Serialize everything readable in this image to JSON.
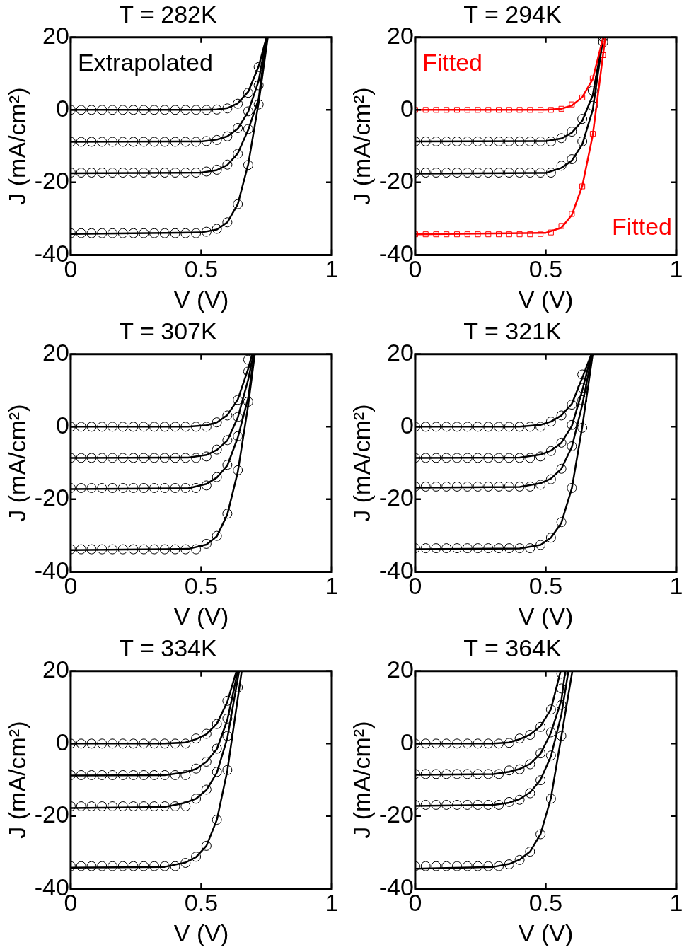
{
  "chart_data": [
    {
      "type": "line",
      "title": "T = 282K",
      "xlabel": "V (V)",
      "ylabel": "J (mA/cm²)",
      "xlim": [
        0,
        1
      ],
      "xticks": [
        0,
        0.5,
        1
      ],
      "ylim": [
        -40,
        20
      ],
      "yticks": [
        -40,
        -20,
        0,
        20
      ],
      "grid": false,
      "annotations": [
        "Extrapolated"
      ],
      "x": [
        0,
        0.04,
        0.08,
        0.12,
        0.16,
        0.2,
        0.24,
        0.28,
        0.32,
        0.36,
        0.4,
        0.44,
        0.48,
        0.52,
        0.56,
        0.6,
        0.64,
        0.68,
        0.72
      ],
      "series": [
        {
          "type": "line",
          "color": "#000000",
          "x": [
            0,
            0.5,
            0.56,
            0.6,
            0.64,
            0.68,
            0.72,
            0.75
          ],
          "values": [
            0,
            0,
            0.1,
            0.5,
            1.8,
            5,
            12,
            20
          ]
        },
        {
          "type": "line",
          "color": "#000000",
          "x": [
            0,
            0.5,
            0.56,
            0.6,
            0.64,
            0.68,
            0.72,
            0.75
          ],
          "values": [
            -8.8,
            -8.7,
            -8.2,
            -7.3,
            -5.2,
            -0.5,
            8,
            20
          ]
        },
        {
          "type": "line",
          "color": "#000000",
          "x": [
            0,
            0.5,
            0.56,
            0.6,
            0.64,
            0.68,
            0.72,
            0.75
          ],
          "values": [
            -17.5,
            -17.3,
            -16.6,
            -15.2,
            -12,
            -5.5,
            3,
            20
          ]
        },
        {
          "type": "line",
          "color": "#000000",
          "x": [
            0,
            0.5,
            0.56,
            0.6,
            0.64,
            0.68,
            0.72,
            0.755
          ],
          "values": [
            -34.2,
            -33.8,
            -33,
            -31,
            -26,
            -15,
            2,
            20
          ]
        },
        {
          "type": "scatter",
          "marker": "circle",
          "color": "#000000",
          "values": [
            0,
            0,
            0,
            0,
            0,
            0,
            0,
            0,
            0,
            0,
            0,
            0,
            0,
            0,
            0.1,
            0.4,
            1.7,
            4.7,
            11.8
          ]
        },
        {
          "type": "scatter",
          "marker": "circle",
          "color": "#000000",
          "values": [
            -8.8,
            -8.8,
            -8.8,
            -8.8,
            -8.8,
            -8.8,
            -8.8,
            -8.8,
            -8.8,
            -8.8,
            -8.8,
            -8.8,
            -8.8,
            -8.6,
            -8.3,
            -7.3,
            -5,
            -0.4,
            6.8
          ]
        },
        {
          "type": "scatter",
          "marker": "circle",
          "color": "#000000",
          "values": [
            -17.3,
            -17.3,
            -17.3,
            -17.3,
            -17.3,
            -17.3,
            -17.3,
            -17.3,
            -17.3,
            -17.3,
            -17.3,
            -17.3,
            -17.3,
            -17,
            -16.5,
            -15.1,
            -12.1,
            -5.3,
            1.5
          ]
        },
        {
          "type": "scatter",
          "marker": "circle",
          "color": "#000000",
          "values": [
            -34,
            -34,
            -34,
            -34,
            -34,
            -34,
            -34,
            -34,
            -34,
            -34,
            -34,
            -34,
            -34,
            -33.6,
            -32.8,
            -31,
            -26,
            -15.2,
            null
          ]
        }
      ]
    },
    {
      "type": "line",
      "title": "T = 294K",
      "xlabel": "V (V)",
      "ylabel": "J (mA/cm²)",
      "xlim": [
        0,
        1
      ],
      "xticks": [
        0,
        0.5,
        1
      ],
      "ylim": [
        -40,
        20
      ],
      "yticks": [
        -40,
        -20,
        0,
        20
      ],
      "grid": false,
      "annotations": [
        "Fitted",
        "Fitted"
      ],
      "x": [
        0,
        0.04,
        0.08,
        0.12,
        0.16,
        0.2,
        0.24,
        0.28,
        0.32,
        0.36,
        0.4,
        0.44,
        0.48,
        0.52,
        0.56,
        0.6,
        0.64,
        0.68,
        0.72
      ],
      "series": [
        {
          "type": "line",
          "color": "#ff0000",
          "x": [
            0,
            0.5,
            0.56,
            0.6,
            0.64,
            0.68,
            0.72
          ],
          "values": [
            0,
            0,
            0.3,
            1.2,
            3.5,
            8.5,
            20
          ]
        },
        {
          "type": "line",
          "color": "#000000",
          "x": [
            0,
            0.5,
            0.56,
            0.6,
            0.64,
            0.68,
            0.72
          ],
          "values": [
            -8.7,
            -8.6,
            -7.9,
            -6.3,
            -3,
            4,
            20
          ]
        },
        {
          "type": "line",
          "color": "#000000",
          "x": [
            0,
            0.5,
            0.56,
            0.6,
            0.64,
            0.68,
            0.72
          ],
          "values": [
            -17.6,
            -17.4,
            -16,
            -14,
            -9.5,
            0,
            20
          ]
        },
        {
          "type": "line",
          "color": "#ff0000",
          "x": [
            0,
            0.5,
            0.56,
            0.6,
            0.64,
            0.68,
            0.728
          ],
          "values": [
            -34.3,
            -33.9,
            -32.5,
            -29,
            -21,
            -7,
            20
          ]
        },
        {
          "type": "scatter",
          "marker": "square",
          "color": "#ff0000",
          "values": [
            0,
            0,
            0,
            0,
            0,
            0,
            0,
            0,
            0,
            0,
            0,
            0,
            0,
            0,
            0.3,
            1.5,
            3.4,
            8.7,
            15.1
          ]
        },
        {
          "type": "scatter",
          "marker": "circle",
          "color": "#000000",
          "values": [
            -8.7,
            -8.7,
            -8.7,
            -8.7,
            -8.7,
            -8.7,
            -8.7,
            -8.7,
            -8.7,
            -8.7,
            -8.7,
            -8.7,
            -8.7,
            -8.7,
            -7.8,
            -6,
            -2.5,
            5.3,
            18.7
          ]
        },
        {
          "type": "scatter",
          "marker": "circle",
          "color": "#000000",
          "values": [
            -17.3,
            -17.3,
            -17.3,
            -17.3,
            -17.3,
            -17.3,
            -17.3,
            -17.3,
            -17.3,
            -17.3,
            -17.3,
            -17.3,
            -17.3,
            -17.3,
            -15.4,
            -13.6,
            -8.7,
            1.1,
            20
          ]
        },
        {
          "type": "scatter",
          "marker": "square",
          "color": "#ff0000",
          "values": [
            -34.3,
            -34.3,
            -34.3,
            -34.3,
            -34.3,
            -34.3,
            -34.3,
            -34.3,
            -34.3,
            -34.3,
            -34.3,
            -34.3,
            -34.2,
            -33.8,
            -32,
            -28.7,
            -21.1,
            -6.6,
            15.1
          ]
        }
      ]
    },
    {
      "type": "line",
      "title": "T = 307K",
      "xlabel": "V (V)",
      "ylabel": "J (mA/cm²)",
      "xlim": [
        0,
        1
      ],
      "xticks": [
        0,
        0.5,
        1
      ],
      "ylim": [
        -40,
        20
      ],
      "yticks": [
        -40,
        -20,
        0,
        20
      ],
      "grid": false,
      "x": [
        0,
        0.04,
        0.08,
        0.12,
        0.16,
        0.2,
        0.24,
        0.28,
        0.32,
        0.36,
        0.4,
        0.44,
        0.48,
        0.52,
        0.56,
        0.6,
        0.64,
        0.68
      ],
      "series": [
        {
          "type": "line",
          "color": "#000000",
          "x": [
            0,
            0.45,
            0.52,
            0.56,
            0.6,
            0.64,
            0.68,
            0.695
          ],
          "values": [
            0,
            0,
            0.4,
            1.2,
            3.2,
            7.5,
            16,
            20
          ]
        },
        {
          "type": "line",
          "color": "#000000",
          "x": [
            0,
            0.45,
            0.52,
            0.56,
            0.6,
            0.64,
            0.68,
            0.7
          ],
          "values": [
            -8.6,
            -8.5,
            -7.8,
            -6.4,
            -3.8,
            2.5,
            13,
            20
          ]
        },
        {
          "type": "line",
          "color": "#000000",
          "x": [
            0,
            0.45,
            0.52,
            0.56,
            0.6,
            0.64,
            0.68,
            0.703
          ],
          "values": [
            -17.2,
            -17,
            -15.8,
            -14,
            -10.7,
            -3,
            8,
            20
          ]
        },
        {
          "type": "line",
          "color": "#000000",
          "x": [
            0,
            0.45,
            0.52,
            0.56,
            0.6,
            0.64,
            0.68,
            0.705
          ],
          "values": [
            -34,
            -33.7,
            -32.5,
            -30.2,
            -24.2,
            -12.5,
            6,
            20
          ]
        },
        {
          "type": "scatter",
          "marker": "circle",
          "color": "#000000",
          "values": [
            0,
            0,
            0,
            0,
            0,
            0,
            0,
            0,
            0,
            0,
            0,
            0,
            0,
            0,
            1.2,
            3.1,
            7.4,
            18.5
          ]
        },
        {
          "type": "scatter",
          "marker": "circle",
          "color": "#000000",
          "values": [
            -8.6,
            -8.6,
            -8.6,
            -8.6,
            -8.6,
            -8.6,
            -8.6,
            -8.6,
            -8.6,
            -8.6,
            -8.6,
            -8.6,
            -8.6,
            -8.2,
            -6.3,
            -3.7,
            2.7,
            15.2
          ]
        },
        {
          "type": "scatter",
          "marker": "circle",
          "color": "#000000",
          "values": [
            -16.9,
            -16.9,
            -16.9,
            -16.9,
            -16.9,
            -16.9,
            -16.9,
            -16.9,
            -16.9,
            -16.9,
            -16.9,
            -16.9,
            -16.9,
            -16.2,
            -13.9,
            -10.5,
            -2.6,
            6.9
          ]
        },
        {
          "type": "scatter",
          "marker": "circle",
          "color": "#000000",
          "values": [
            -33.8,
            -33.8,
            -33.8,
            -33.8,
            -33.8,
            -33.8,
            -33.8,
            -33.8,
            -33.8,
            -33.8,
            -33.8,
            -33.8,
            -33.8,
            -32.3,
            -30.1,
            -24,
            -12,
            null
          ]
        }
      ]
    },
    {
      "type": "line",
      "title": "T = 321K",
      "xlabel": "V (V)",
      "ylabel": "J (mA/cm²)",
      "xlim": [
        0,
        1
      ],
      "xticks": [
        0,
        0.5,
        1
      ],
      "ylim": [
        -40,
        20
      ],
      "yticks": [
        -40,
        -20,
        0,
        20
      ],
      "grid": false,
      "x": [
        0,
        0.04,
        0.08,
        0.12,
        0.16,
        0.2,
        0.24,
        0.28,
        0.32,
        0.36,
        0.4,
        0.44,
        0.48,
        0.52,
        0.56,
        0.6,
        0.64
      ],
      "series": [
        {
          "type": "line",
          "color": "#000000",
          "x": [
            0,
            0.4,
            0.48,
            0.52,
            0.56,
            0.6,
            0.64,
            0.675
          ],
          "values": [
            0,
            0,
            0.5,
            1.4,
            3.1,
            6.3,
            13.5,
            20
          ]
        },
        {
          "type": "line",
          "color": "#000000",
          "x": [
            0,
            0.4,
            0.48,
            0.52,
            0.56,
            0.6,
            0.64,
            0.675
          ],
          "values": [
            -8.6,
            -8.5,
            -7.7,
            -6.6,
            -4.4,
            0.2,
            10,
            20
          ]
        },
        {
          "type": "line",
          "color": "#000000",
          "x": [
            0,
            0.4,
            0.48,
            0.52,
            0.56,
            0.6,
            0.64,
            0.678
          ],
          "values": [
            -16.8,
            -16.6,
            -15.6,
            -14.3,
            -11.6,
            -5.6,
            6,
            20
          ]
        },
        {
          "type": "line",
          "color": "#000000",
          "x": [
            0,
            0.4,
            0.48,
            0.52,
            0.56,
            0.6,
            0.64,
            0.68
          ],
          "values": [
            -33.8,
            -33.6,
            -32.6,
            -30.6,
            -26.5,
            -17,
            0,
            20
          ]
        },
        {
          "type": "scatter",
          "marker": "circle",
          "color": "#000000",
          "values": [
            0,
            0,
            0,
            0,
            0,
            0,
            0,
            0,
            0,
            0,
            0,
            0,
            0,
            1.4,
            3.1,
            6.1,
            14.4
          ]
        },
        {
          "type": "scatter",
          "marker": "circle",
          "color": "#000000",
          "values": [
            -8.6,
            -8.6,
            -8.6,
            -8.6,
            -8.6,
            -8.6,
            -8.6,
            -8.6,
            -8.6,
            -8.6,
            -8.6,
            -8.6,
            -8.2,
            -6.7,
            -4.4,
            0.5,
            10.7
          ]
        },
        {
          "type": "scatter",
          "marker": "circle",
          "color": "#000000",
          "values": [
            -16.5,
            -16.5,
            -16.5,
            -16.5,
            -16.5,
            -16.5,
            -16.5,
            -16.5,
            -16.5,
            -16.5,
            -16.5,
            -16.5,
            -16,
            -14.5,
            -11.6,
            -5.4,
            7.3
          ]
        },
        {
          "type": "scatter",
          "marker": "circle",
          "color": "#000000",
          "values": [
            -33.5,
            -33.5,
            -33.5,
            -33.5,
            -33.5,
            -33.5,
            -33.5,
            -33.5,
            -33.5,
            -33.5,
            -33.5,
            -33.5,
            -32.6,
            -30.6,
            -26.3,
            -16.9,
            -0.3
          ]
        }
      ]
    },
    {
      "type": "line",
      "title": "T = 334K",
      "xlabel": "V (V)",
      "ylabel": "J (mA/cm²)",
      "xlim": [
        0,
        1
      ],
      "xticks": [
        0,
        0.5,
        1
      ],
      "ylim": [
        -40,
        20
      ],
      "yticks": [
        -40,
        -20,
        0,
        20
      ],
      "grid": false,
      "x": [
        0,
        0.04,
        0.08,
        0.12,
        0.16,
        0.2,
        0.24,
        0.28,
        0.32,
        0.36,
        0.4,
        0.44,
        0.48,
        0.52,
        0.56,
        0.6,
        0.64
      ],
      "series": [
        {
          "type": "line",
          "color": "#000000",
          "x": [
            0,
            0.36,
            0.44,
            0.48,
            0.52,
            0.56,
            0.6,
            0.635
          ],
          "values": [
            0,
            0,
            0.3,
            1.2,
            2.6,
            5.5,
            11.5,
            20
          ]
        },
        {
          "type": "line",
          "color": "#000000",
          "x": [
            0,
            0.36,
            0.44,
            0.48,
            0.52,
            0.56,
            0.6,
            0.64
          ],
          "values": [
            -8.8,
            -8.7,
            -7.9,
            -7,
            -5,
            -1.5,
            6.5,
            20
          ]
        },
        {
          "type": "line",
          "color": "#000000",
          "x": [
            0,
            0.36,
            0.44,
            0.48,
            0.52,
            0.56,
            0.6,
            0.645
          ],
          "values": [
            -17.8,
            -17.5,
            -16.3,
            -15.2,
            -12.8,
            -8,
            1.5,
            20
          ]
        },
        {
          "type": "line",
          "color": "#000000",
          "x": [
            0,
            0.36,
            0.44,
            0.48,
            0.52,
            0.56,
            0.6,
            0.655
          ],
          "values": [
            -34.2,
            -34,
            -32.8,
            -31.3,
            -28.2,
            -21,
            -7.5,
            20
          ]
        },
        {
          "type": "scatter",
          "marker": "circle",
          "color": "#000000",
          "values": [
            0,
            0,
            0,
            0,
            0,
            0,
            0,
            0,
            0,
            0,
            0,
            0,
            1.4,
            2.7,
            5.4,
            11.8,
            null
          ]
        },
        {
          "type": "scatter",
          "marker": "circle",
          "color": "#000000",
          "values": [
            -8.7,
            -8.7,
            -8.7,
            -8.7,
            -8.7,
            -8.7,
            -8.7,
            -8.7,
            -8.7,
            -8.7,
            -8.7,
            -8.7,
            -6.9,
            -5,
            -1.4,
            6.9,
            15.5
          ]
        },
        {
          "type": "scatter",
          "marker": "circle",
          "color": "#000000",
          "values": [
            -17.3,
            -17.3,
            -17.3,
            -17.3,
            -17.3,
            -17.3,
            -17.3,
            -17.3,
            -17.3,
            -17.3,
            -17.3,
            -17.3,
            -15.2,
            -12.7,
            -7.8,
            2.1,
            null
          ]
        },
        {
          "type": "scatter",
          "marker": "circle",
          "color": "#000000",
          "values": [
            -33.8,
            -33.8,
            -33.8,
            -33.8,
            -33.8,
            -33.8,
            -33.8,
            -33.8,
            -33.8,
            -33.8,
            -33.8,
            -32.9,
            -31.2,
            -28.2,
            -21,
            -7.3,
            null
          ]
        }
      ]
    },
    {
      "type": "line",
      "title": "T = 364K",
      "xlabel": "V (V)",
      "ylabel": "J (mA/cm²)",
      "xlim": [
        0,
        1
      ],
      "xticks": [
        0,
        0.5,
        1
      ],
      "ylim": [
        -40,
        20
      ],
      "yticks": [
        -40,
        -20,
        0,
        20
      ],
      "grid": false,
      "x": [
        0,
        0.04,
        0.08,
        0.12,
        0.16,
        0.2,
        0.24,
        0.28,
        0.32,
        0.36,
        0.4,
        0.44,
        0.48,
        0.52,
        0.56
      ],
      "series": [
        {
          "type": "line",
          "color": "#000000",
          "x": [
            0,
            0.3,
            0.36,
            0.4,
            0.44,
            0.48,
            0.52,
            0.557
          ],
          "values": [
            0,
            0,
            0.3,
            1.2,
            2.5,
            4.8,
            9.5,
            20
          ]
        },
        {
          "type": "line",
          "color": "#000000",
          "x": [
            0,
            0.3,
            0.36,
            0.4,
            0.44,
            0.48,
            0.52,
            0.56,
            0.575
          ],
          "values": [
            -8.6,
            -8.4,
            -7.8,
            -7,
            -5.6,
            -2.8,
            3,
            12,
            20
          ]
        },
        {
          "type": "line",
          "color": "#000000",
          "x": [
            0,
            0.3,
            0.36,
            0.4,
            0.44,
            0.48,
            0.52,
            0.56,
            0.587
          ],
          "values": [
            -17.2,
            -16.9,
            -16.3,
            -15.3,
            -13.5,
            -10,
            -3.5,
            8,
            20
          ]
        },
        {
          "type": "line",
          "color": "#000000",
          "x": [
            0,
            0.3,
            0.36,
            0.4,
            0.44,
            0.48,
            0.52,
            0.56,
            0.602
          ],
          "values": [
            -34.5,
            -34,
            -33.2,
            -32,
            -29.8,
            -25,
            -15,
            2,
            20
          ]
        },
        {
          "type": "scatter",
          "marker": "circle",
          "color": "#000000",
          "values": [
            0,
            0,
            0,
            0,
            0,
            0,
            0,
            0,
            0,
            0.2,
            1.4,
            2.4,
            4.6,
            9.4,
            19.3
          ]
        },
        {
          "type": "scatter",
          "marker": "circle",
          "color": "#000000",
          "values": [
            -8.4,
            -8.4,
            -8.4,
            -8.4,
            -8.4,
            -8.4,
            -8.4,
            -8.4,
            -8.4,
            -7.4,
            -7.1,
            -5.7,
            -2.7,
            3.1,
            15.2
          ]
        },
        {
          "type": "scatter",
          "marker": "circle",
          "color": "#000000",
          "values": [
            -16.9,
            -16.9,
            -16.9,
            -16.9,
            -16.9,
            -16.9,
            -16.9,
            -16.9,
            -16.9,
            -16.1,
            -15.5,
            -13.7,
            -10.1,
            -3.3,
            10.7
          ]
        },
        {
          "type": "scatter",
          "marker": "circle",
          "color": "#000000",
          "values": [
            -33.8,
            -33.8,
            -33.8,
            -33.8,
            -33.8,
            -33.8,
            -33.8,
            -33.8,
            -33.8,
            -33.3,
            -32.1,
            -29.8,
            -25,
            -15.2,
            2.1
          ]
        }
      ]
    }
  ]
}
